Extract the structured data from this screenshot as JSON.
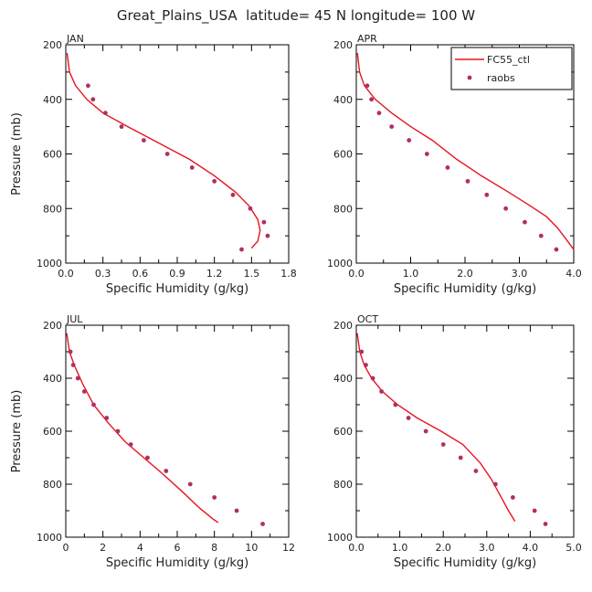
{
  "title": "Great_Plains_USA  latitude= 45 N longitude= 100 W",
  "legend": {
    "model": "FC55_ctl",
    "obs": "raobs",
    "placement": "top-right"
  },
  "colors": {
    "model": "#e8141e",
    "obs": "#b03060",
    "axes": "#000000"
  },
  "chart_data": [
    {
      "type": "line",
      "panel": "JAN",
      "xlabel": "Specific Humidity (g/kg)",
      "ylabel": "Pressure (mb)",
      "xlim": [
        0,
        1.8
      ],
      "ylim": [
        1000,
        200
      ],
      "grid": false,
      "xticks": [
        0.0,
        0.3,
        0.6,
        0.9,
        1.2,
        1.5,
        1.8
      ],
      "xtick_labels": [
        "0.0",
        "0.3",
        "0.6",
        "0.9",
        "1.2",
        "1.5",
        "1.8"
      ],
      "yticks": [
        200,
        400,
        600,
        800,
        1000
      ],
      "series": [
        {
          "name": "FC55_ctl",
          "kind": "line",
          "x": [
            0.01,
            0.03,
            0.08,
            0.17,
            0.3,
            0.5,
            0.75,
            1.0,
            1.2,
            1.37,
            1.48,
            1.55,
            1.57,
            1.55,
            1.5
          ],
          "y": [
            230,
            300,
            350,
            400,
            450,
            500,
            560,
            620,
            680,
            740,
            790,
            840,
            880,
            920,
            945
          ]
        },
        {
          "name": "raobs",
          "kind": "scatter",
          "x": [
            0.18,
            0.22,
            0.32,
            0.45,
            0.63,
            0.82,
            1.02,
            1.2,
            1.35,
            1.49,
            1.6,
            1.63,
            1.42
          ],
          "y": [
            350,
            400,
            450,
            500,
            550,
            600,
            650,
            700,
            750,
            800,
            850,
            900,
            950
          ]
        }
      ]
    },
    {
      "type": "line",
      "panel": "APR",
      "xlabel": "Specific Humidity (g/kg)",
      "ylabel": "",
      "xlim": [
        0,
        4.0
      ],
      "ylim": [
        1000,
        200
      ],
      "grid": false,
      "xticks": [
        0.0,
        1.0,
        2.0,
        3.0,
        4.0
      ],
      "xtick_labels": [
        "0.0",
        "1.0",
        "2.0",
        "3.0",
        "4.0"
      ],
      "yticks": [
        200,
        400,
        600,
        800,
        1000
      ],
      "series": [
        {
          "name": "FC55_ctl",
          "kind": "line",
          "x": [
            0.02,
            0.06,
            0.15,
            0.35,
            0.65,
            1.0,
            1.4,
            1.85,
            2.3,
            2.8,
            3.2,
            3.5,
            3.7,
            3.85,
            4.0
          ],
          "y": [
            230,
            300,
            350,
            400,
            450,
            500,
            550,
            620,
            680,
            740,
            790,
            830,
            870,
            910,
            950
          ]
        },
        {
          "name": "raobs",
          "kind": "scatter",
          "x": [
            0.2,
            0.28,
            0.42,
            0.65,
            0.97,
            1.3,
            1.68,
            2.05,
            2.4,
            2.75,
            3.1,
            3.4,
            3.68
          ],
          "y": [
            350,
            400,
            450,
            500,
            550,
            600,
            650,
            700,
            750,
            800,
            850,
            900,
            950
          ]
        }
      ]
    },
    {
      "type": "line",
      "panel": "JUL",
      "xlabel": "Specific Humidity (g/kg)",
      "ylabel": "Pressure (mb)",
      "xlim": [
        0,
        12
      ],
      "ylim": [
        1000,
        200
      ],
      "grid": false,
      "xticks": [
        0,
        2,
        4,
        6,
        8,
        10,
        12
      ],
      "xtick_labels": [
        "0",
        "2",
        "4",
        "6",
        "8",
        "10",
        "12"
      ],
      "yticks": [
        200,
        400,
        600,
        800,
        1000
      ],
      "series": [
        {
          "name": "FC55_ctl",
          "kind": "line",
          "x": [
            0.05,
            0.2,
            0.45,
            0.9,
            1.5,
            2.3,
            3.2,
            4.2,
            5.2,
            6.3,
            7.2,
            7.9,
            8.2
          ],
          "y": [
            230,
            300,
            350,
            420,
            500,
            570,
            640,
            700,
            760,
            830,
            890,
            930,
            945
          ]
        },
        {
          "name": "raobs",
          "kind": "scatter",
          "x": [
            0.25,
            0.4,
            0.65,
            1.0,
            1.5,
            2.2,
            2.8,
            3.5,
            4.4,
            5.4,
            6.7,
            8.0,
            9.2,
            10.6
          ],
          "y": [
            300,
            350,
            400,
            450,
            500,
            550,
            600,
            650,
            700,
            750,
            800,
            850,
            900,
            950
          ]
        }
      ]
    },
    {
      "type": "line",
      "panel": "OCT",
      "xlabel": "Specific Humidity (g/kg)",
      "ylabel": "",
      "xlim": [
        0,
        5.0
      ],
      "ylim": [
        1000,
        200
      ],
      "grid": false,
      "xticks": [
        0.0,
        1.0,
        2.0,
        3.0,
        4.0,
        5.0
      ],
      "xtick_labels": [
        "0.0",
        "1.0",
        "2.0",
        "3.0",
        "4.0",
        "5.0"
      ],
      "yticks": [
        200,
        400,
        600,
        800,
        1000
      ],
      "series": [
        {
          "name": "FC55_ctl",
          "kind": "line",
          "x": [
            0.02,
            0.08,
            0.18,
            0.35,
            0.6,
            0.95,
            1.4,
            1.95,
            2.45,
            2.85,
            3.1,
            3.3,
            3.5,
            3.65
          ],
          "y": [
            230,
            300,
            350,
            400,
            450,
            500,
            550,
            600,
            650,
            720,
            780,
            840,
            900,
            940
          ]
        },
        {
          "name": "raobs",
          "kind": "scatter",
          "x": [
            0.12,
            0.22,
            0.38,
            0.58,
            0.9,
            1.2,
            1.6,
            2.0,
            2.4,
            2.75,
            3.2,
            3.6,
            4.1,
            4.35
          ],
          "y": [
            300,
            350,
            400,
            450,
            500,
            550,
            600,
            650,
            700,
            750,
            800,
            850,
            900,
            950
          ]
        }
      ]
    }
  ]
}
